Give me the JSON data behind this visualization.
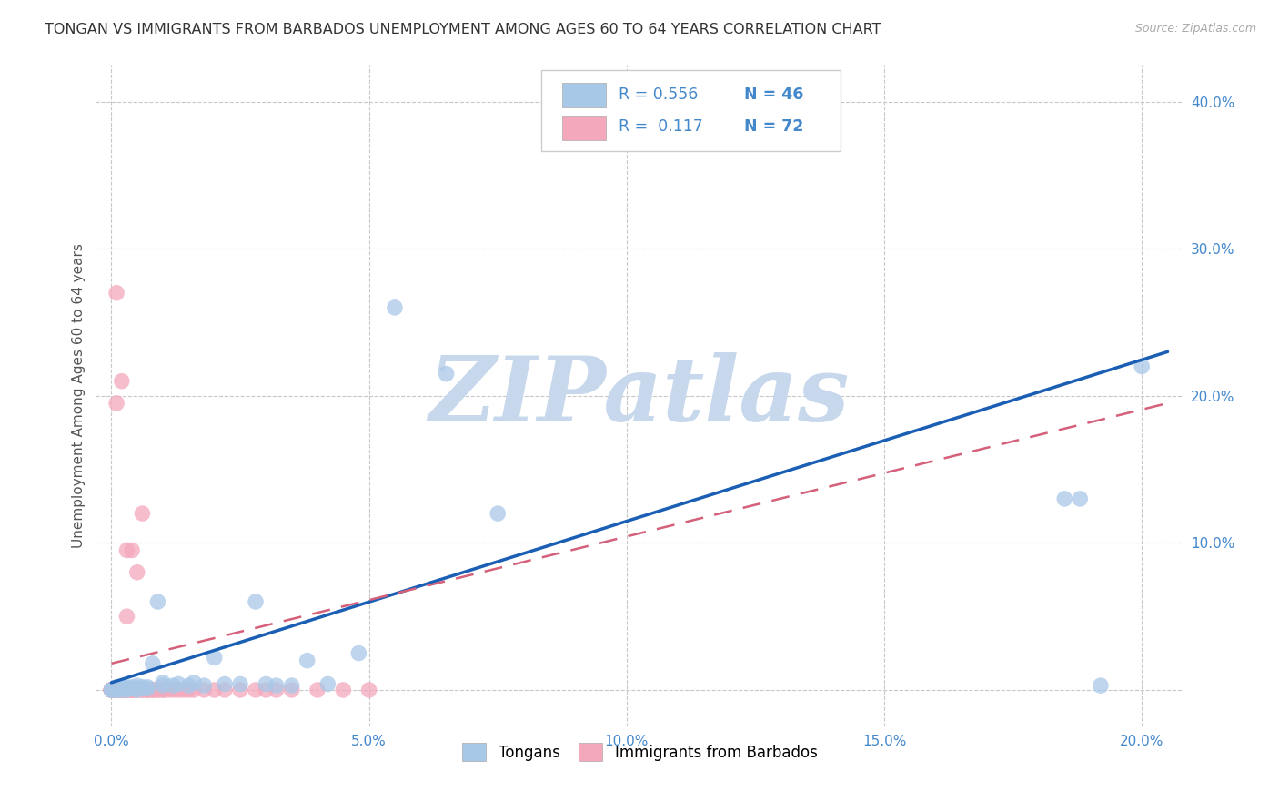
{
  "title": "TONGAN VS IMMIGRANTS FROM BARBADOS UNEMPLOYMENT AMONG AGES 60 TO 64 YEARS CORRELATION CHART",
  "source": "Source: ZipAtlas.com",
  "ylabel": "Unemployment Among Ages 60 to 64 years",
  "xlim": [
    -0.003,
    0.208
  ],
  "ylim": [
    -0.025,
    0.425
  ],
  "xticks": [
    0.0,
    0.05,
    0.1,
    0.15,
    0.2
  ],
  "yticks": [
    0.0,
    0.1,
    0.2,
    0.3,
    0.4
  ],
  "xtick_labels": [
    "0.0%",
    "5.0%",
    "10.0%",
    "15.0%",
    "20.0%"
  ],
  "ytick_labels": [
    "",
    "10.0%",
    "20.0%",
    "30.0%",
    "40.0%"
  ],
  "tongan_color": "#a8c8e8",
  "barbados_color": "#f4a8bc",
  "tongan_line_color": "#1a5fb4",
  "barbados_line_color": "#d4607a",
  "watermark": "ZIPatlas",
  "watermark_color": "#c8d8ec",
  "background_color": "#ffffff",
  "grid_color": "#c8c8c8",
  "tick_color": "#4488cc",
  "legend_text_color": "#4488cc",
  "title_color": "#333333",
  "ylabel_color": "#555555",
  "tongan_x": [
    0.0,
    0.0,
    0.001,
    0.001,
    0.001,
    0.002,
    0.002,
    0.002,
    0.003,
    0.003,
    0.003,
    0.004,
    0.004,
    0.005,
    0.005,
    0.005,
    0.006,
    0.006,
    0.007,
    0.007,
    0.008,
    0.009,
    0.01,
    0.01,
    0.012,
    0.013,
    0.015,
    0.016,
    0.018,
    0.02,
    0.022,
    0.025,
    0.028,
    0.03,
    0.032,
    0.035,
    0.038,
    0.042,
    0.048,
    0.055,
    0.065,
    0.075,
    0.185,
    0.188,
    0.192,
    0.2
  ],
  "tongan_y": [
    0.0,
    0.0,
    0.0,
    0.0,
    0.002,
    0.0,
    0.001,
    0.002,
    0.0,
    0.001,
    0.002,
    0.001,
    0.002,
    0.0,
    0.001,
    0.003,
    0.001,
    0.002,
    0.001,
    0.002,
    0.018,
    0.06,
    0.003,
    0.005,
    0.003,
    0.004,
    0.003,
    0.005,
    0.003,
    0.022,
    0.004,
    0.004,
    0.06,
    0.004,
    0.003,
    0.003,
    0.02,
    0.004,
    0.025,
    0.26,
    0.215,
    0.12,
    0.13,
    0.13,
    0.003,
    0.22
  ],
  "barbados_x": [
    0.0,
    0.0,
    0.0,
    0.0,
    0.0,
    0.0,
    0.0,
    0.0,
    0.001,
    0.001,
    0.001,
    0.001,
    0.001,
    0.001,
    0.001,
    0.001,
    0.001,
    0.001,
    0.002,
    0.002,
    0.002,
    0.002,
    0.002,
    0.002,
    0.002,
    0.003,
    0.003,
    0.003,
    0.003,
    0.003,
    0.003,
    0.003,
    0.004,
    0.004,
    0.004,
    0.004,
    0.004,
    0.004,
    0.005,
    0.005,
    0.005,
    0.005,
    0.006,
    0.006,
    0.006,
    0.007,
    0.007,
    0.007,
    0.008,
    0.008,
    0.008,
    0.009,
    0.009,
    0.01,
    0.01,
    0.011,
    0.012,
    0.013,
    0.014,
    0.015,
    0.016,
    0.018,
    0.02,
    0.022,
    0.025,
    0.028,
    0.03,
    0.032,
    0.035,
    0.04,
    0.045,
    0.05
  ],
  "barbados_y": [
    0.0,
    0.0,
    0.0,
    0.0,
    0.0,
    0.0,
    0.0,
    0.0,
    0.0,
    0.0,
    0.0,
    0.0,
    0.0,
    0.0,
    0.0,
    0.0,
    0.195,
    0.27,
    0.0,
    0.0,
    0.0,
    0.0,
    0.21,
    0.0,
    0.0,
    0.0,
    0.0,
    0.0,
    0.0,
    0.05,
    0.095,
    0.0,
    0.0,
    0.0,
    0.0,
    0.095,
    0.0,
    0.0,
    0.0,
    0.0,
    0.0,
    0.08,
    0.0,
    0.0,
    0.12,
    0.0,
    0.0,
    0.0,
    0.0,
    0.0,
    0.0,
    0.0,
    0.0,
    0.0,
    0.0,
    0.0,
    0.0,
    0.0,
    0.0,
    0.0,
    0.0,
    0.0,
    0.0,
    0.0,
    0.0,
    0.0,
    0.0,
    0.0,
    0.0,
    0.0,
    0.0,
    0.0
  ],
  "tongan_line_x0": 0.0,
  "tongan_line_y0": 0.005,
  "tongan_line_x1": 0.205,
  "tongan_line_y1": 0.23,
  "barbados_line_x0": 0.0,
  "barbados_line_y0": 0.018,
  "barbados_line_x1": 0.205,
  "barbados_line_y1": 0.195
}
